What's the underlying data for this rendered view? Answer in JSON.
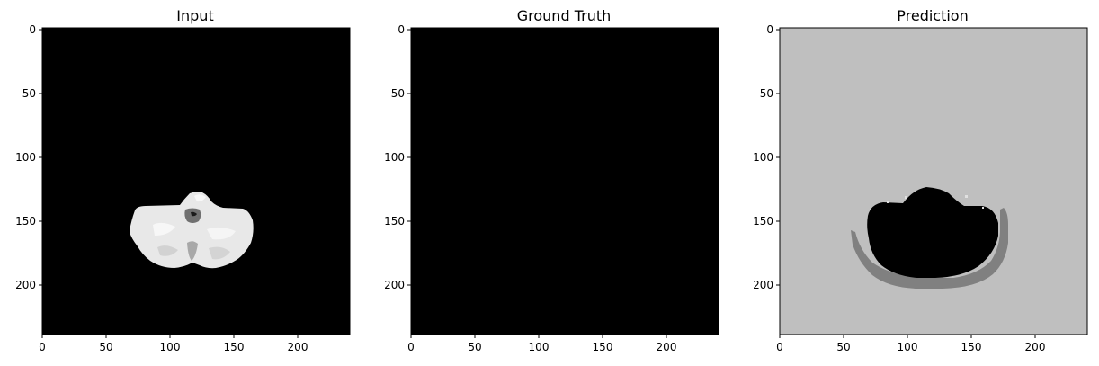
{
  "figure": {
    "panels": [
      {
        "title": "Input",
        "image": "grayscale-brain-slice-on-black",
        "x_ticks": [
          "0",
          "50",
          "100",
          "150",
          "200"
        ],
        "y_ticks": [
          "0",
          "50",
          "100",
          "150",
          "200"
        ]
      },
      {
        "title": "Ground Truth",
        "image": "all-black-mask",
        "x_ticks": [
          "0",
          "50",
          "100",
          "150",
          "200"
        ],
        "y_ticks": [
          "0",
          "50",
          "100",
          "150",
          "200"
        ]
      },
      {
        "title": "Prediction",
        "image": "segmentation-mask-gray-background",
        "x_ticks": [
          "0",
          "50",
          "100",
          "150",
          "200"
        ],
        "y_ticks": [
          "0",
          "50",
          "100",
          "150",
          "200"
        ]
      }
    ],
    "axis_range": [
      0,
      240
    ],
    "colors": {
      "background": "#ffffff",
      "image_black": "#000000",
      "input_tissue": "#e6e6e6",
      "prediction_background": "#bfbfbf",
      "prediction_rim": "#808080",
      "prediction_inner": "#000000"
    }
  }
}
